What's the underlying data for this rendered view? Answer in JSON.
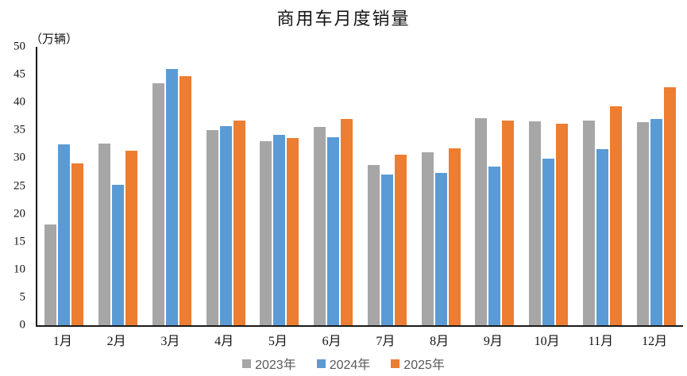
{
  "chart_data": {
    "type": "bar",
    "title": "商用车月度销量",
    "unit_label": "（万辆）",
    "categories": [
      "1月",
      "2月",
      "3月",
      "4月",
      "5月",
      "6月",
      "7月",
      "8月",
      "9月",
      "10月",
      "11月",
      "12月"
    ],
    "series": [
      {
        "name": "2023年",
        "color": "#a6a6a6",
        "values": [
          18.1,
          32.6,
          43.5,
          35.0,
          33.1,
          35.6,
          28.8,
          31.1,
          37.2,
          36.6,
          36.7,
          36.5
        ]
      },
      {
        "name": "2024年",
        "color": "#5b9bd5",
        "values": [
          32.5,
          25.2,
          46.0,
          35.8,
          34.2,
          33.8,
          27.0,
          27.3,
          28.5,
          29.9,
          31.6,
          37.0
        ]
      },
      {
        "name": "2025年",
        "color": "#ed7d31",
        "values": [
          29.0,
          31.3,
          44.8,
          36.8,
          33.6,
          37.0,
          30.6,
          31.8,
          36.8,
          36.2,
          39.3,
          42.7
        ]
      }
    ],
    "ylim": [
      0,
      50
    ],
    "y_ticks": [
      0,
      5,
      10,
      15,
      20,
      25,
      30,
      35,
      40,
      45,
      50
    ],
    "xlabel": "",
    "ylabel": "",
    "grid": false,
    "legend_position": "bottom"
  }
}
